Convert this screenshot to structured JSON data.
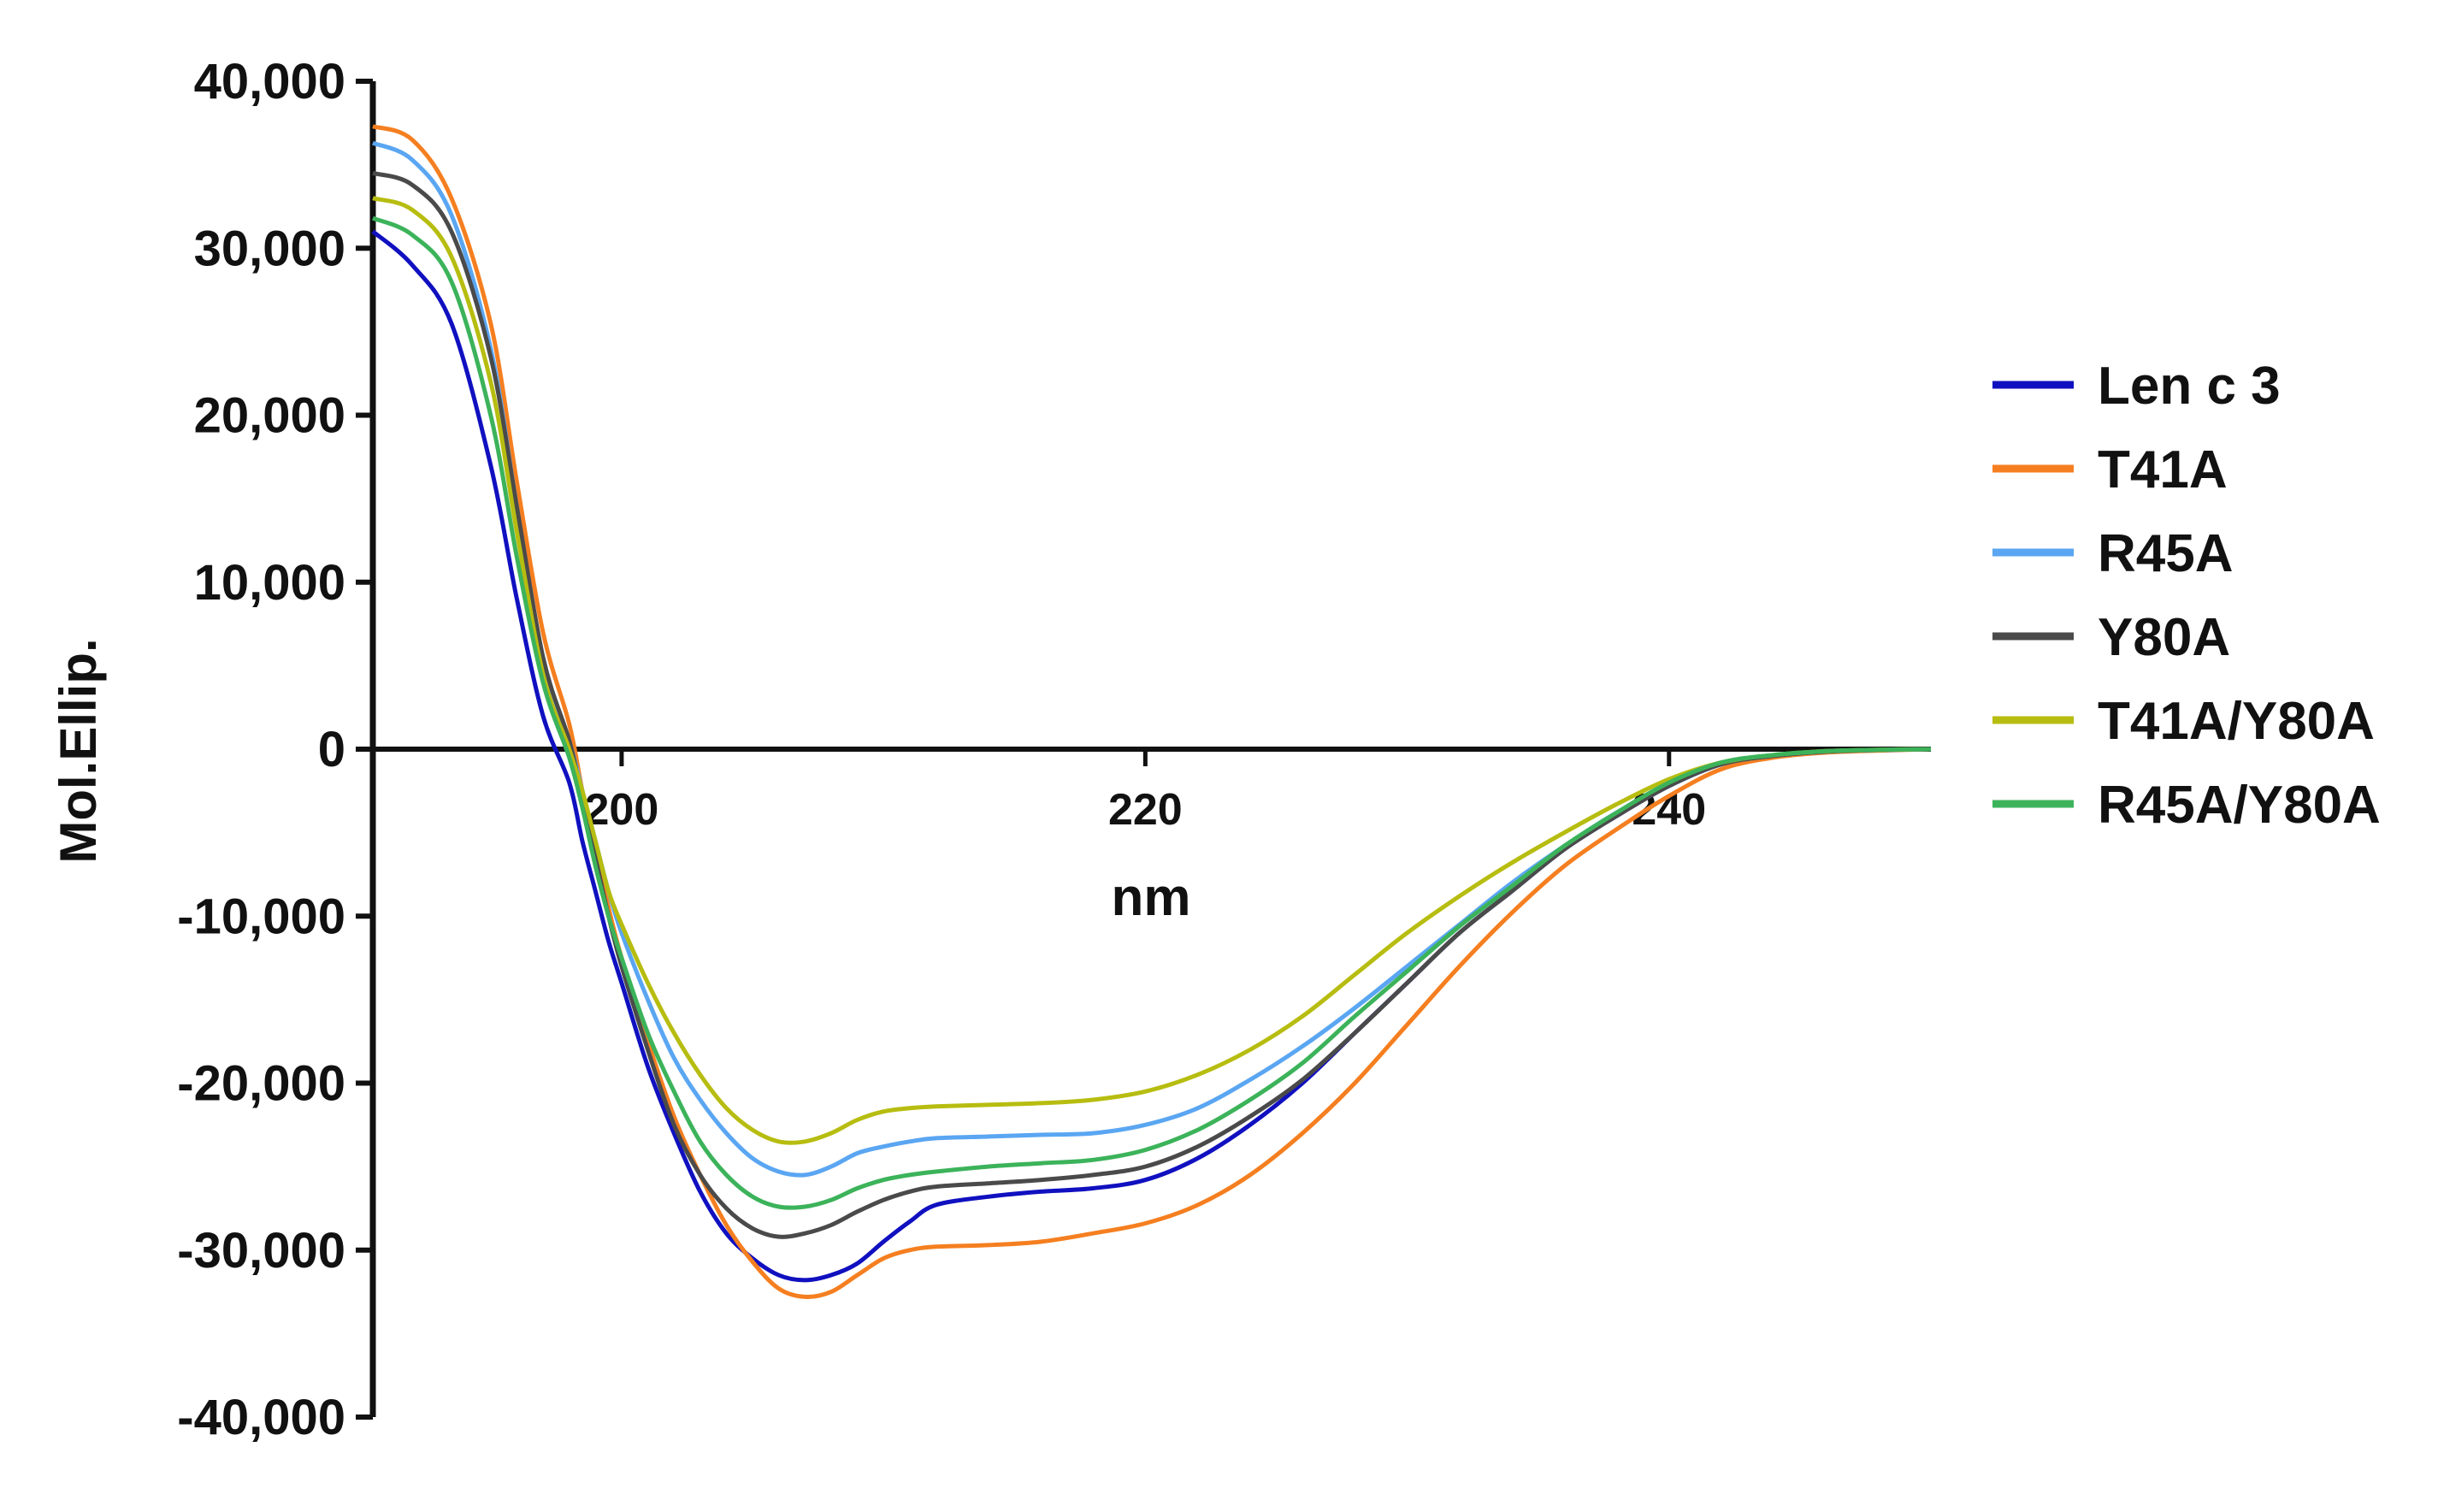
{
  "chart_data": {
    "type": "line",
    "xlabel": "nm",
    "ylabel": "Mol.Ellip.",
    "xlim": [
      190.5,
      250
    ],
    "ylim": [
      -40000,
      40000
    ],
    "x_ticks": [
      200,
      220,
      240
    ],
    "x_tick_labels": [
      "200",
      "220",
      "240"
    ],
    "y_ticks": [
      40000,
      30000,
      20000,
      10000,
      0,
      -10000,
      -20000,
      -30000,
      -40000
    ],
    "y_tick_labels": [
      "40,000",
      "30,000",
      "20,000",
      "10,000",
      "0",
      "-10,000",
      "-20,000",
      "-30,000",
      "-40,000"
    ],
    "legend_position": "right",
    "x": [
      190.5,
      192,
      193.5,
      195,
      196,
      197,
      198,
      198.5,
      199,
      199.5,
      200,
      201,
      202,
      203,
      204,
      205,
      206,
      207,
      208,
      209,
      210,
      211,
      212,
      214,
      216,
      218,
      220,
      222,
      224,
      226,
      228,
      230,
      232,
      234,
      236,
      238,
      240,
      242,
      244,
      246,
      248,
      250
    ],
    "series": [
      {
        "name": "Len c 3",
        "color": "#1010c0",
        "values": [
          31000,
          29000,
          25500,
          17000,
          9000,
          2000,
          -2000,
          -5500,
          -8500,
          -11500,
          -14000,
          -19000,
          -23000,
          -26500,
          -29000,
          -30500,
          -31500,
          -31800,
          -31500,
          -30800,
          -29500,
          -28300,
          -27300,
          -26800,
          -26500,
          -26300,
          -25800,
          -24500,
          -22500,
          -20000,
          -17000,
          -14000,
          -11000,
          -8500,
          -6000,
          -4000,
          -2200,
          -900,
          -400,
          -150,
          -50,
          0
        ]
      },
      {
        "name": "T41A",
        "color": "#f57f20",
        "values": [
          37300,
          36500,
          33000,
          25500,
          16000,
          7000,
          1500,
          -2500,
          -6000,
          -9500,
          -12500,
          -17500,
          -22000,
          -25500,
          -28500,
          -30700,
          -32300,
          -32800,
          -32500,
          -31500,
          -30500,
          -30000,
          -29800,
          -29700,
          -29500,
          -29000,
          -28400,
          -27300,
          -25500,
          -23000,
          -20000,
          -16500,
          -13000,
          -9800,
          -7000,
          -4800,
          -2800,
          -1200,
          -500,
          -200,
          -80,
          0
        ]
      },
      {
        "name": "R45A",
        "color": "#5aa6f2",
        "values": [
          36300,
          35300,
          32000,
          24000,
          14500,
          5500,
          500,
          -2500,
          -5500,
          -8500,
          -11000,
          -15000,
          -18500,
          -21000,
          -23000,
          -24500,
          -25300,
          -25500,
          -25000,
          -24200,
          -23800,
          -23500,
          -23300,
          -23200,
          -23100,
          -23000,
          -22500,
          -21500,
          -19800,
          -17800,
          -15500,
          -13000,
          -10500,
          -8000,
          -5800,
          -3800,
          -2200,
          -900,
          -400,
          -150,
          -50,
          0
        ]
      },
      {
        "name": "Y80A",
        "color": "#4a4a4a",
        "values": [
          34500,
          33800,
          31000,
          23500,
          14500,
          5500,
          500,
          -3000,
          -6500,
          -10000,
          -13000,
          -18000,
          -22500,
          -25500,
          -27500,
          -28700,
          -29200,
          -29000,
          -28500,
          -27700,
          -27000,
          -26500,
          -26200,
          -26000,
          -25800,
          -25500,
          -25000,
          -23800,
          -22000,
          -19800,
          -17000,
          -14000,
          -11000,
          -8500,
          -6000,
          -4000,
          -2200,
          -900,
          -400,
          -150,
          -50,
          0
        ]
      },
      {
        "name": "T41A/Y80A",
        "color": "#b7bd10",
        "values": [
          33000,
          32300,
          29500,
          22000,
          13000,
          4500,
          0,
          -2500,
          -5500,
          -8500,
          -10500,
          -14000,
          -17000,
          -19500,
          -21500,
          -22800,
          -23500,
          -23500,
          -23000,
          -22200,
          -21700,
          -21500,
          -21400,
          -21300,
          -21200,
          -21000,
          -20500,
          -19500,
          -18000,
          -16000,
          -13500,
          -11000,
          -8800,
          -6800,
          -5000,
          -3300,
          -1800,
          -800,
          -350,
          -120,
          -40,
          0
        ]
      },
      {
        "name": "R45A/Y80A",
        "color": "#3cb35a",
        "values": [
          31800,
          30800,
          28000,
          20000,
          11500,
          4000,
          -500,
          -3500,
          -7000,
          -10000,
          -12500,
          -17000,
          -20500,
          -23500,
          -25500,
          -26800,
          -27400,
          -27400,
          -27000,
          -26300,
          -25800,
          -25500,
          -25300,
          -25000,
          -24800,
          -24600,
          -24000,
          -22800,
          -21000,
          -18800,
          -16000,
          -13300,
          -10600,
          -8200,
          -5800,
          -3800,
          -2000,
          -800,
          -350,
          -120,
          -40,
          0
        ]
      }
    ]
  }
}
